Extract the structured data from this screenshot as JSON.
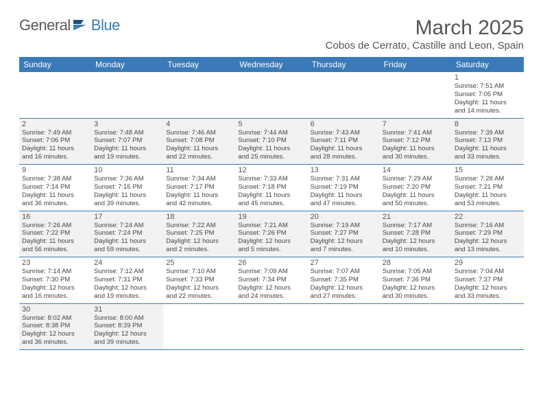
{
  "logo": {
    "text1": "General",
    "text2": "Blue"
  },
  "title": "March 2025",
  "location": "Cobos de Cerrato, Castille and Leon, Spain",
  "colors": {
    "accent": "#3a7ab8",
    "shaded": "#f2f2f2",
    "text": "#444"
  },
  "day_headers": [
    "Sunday",
    "Monday",
    "Tuesday",
    "Wednesday",
    "Thursday",
    "Friday",
    "Saturday"
  ],
  "weeks": [
    [
      {
        "empty": true
      },
      {
        "empty": true
      },
      {
        "empty": true
      },
      {
        "empty": true
      },
      {
        "empty": true
      },
      {
        "empty": true
      },
      {
        "n": "1",
        "sr": "Sunrise: 7:51 AM",
        "ss": "Sunset: 7:05 PM",
        "d1": "Daylight: 11 hours",
        "d2": "and 14 minutes."
      }
    ],
    [
      {
        "n": "2",
        "sr": "Sunrise: 7:49 AM",
        "ss": "Sunset: 7:06 PM",
        "d1": "Daylight: 11 hours",
        "d2": "and 16 minutes."
      },
      {
        "n": "3",
        "sr": "Sunrise: 7:48 AM",
        "ss": "Sunset: 7:07 PM",
        "d1": "Daylight: 11 hours",
        "d2": "and 19 minutes."
      },
      {
        "n": "4",
        "sr": "Sunrise: 7:46 AM",
        "ss": "Sunset: 7:08 PM",
        "d1": "Daylight: 11 hours",
        "d2": "and 22 minutes."
      },
      {
        "n": "5",
        "sr": "Sunrise: 7:44 AM",
        "ss": "Sunset: 7:10 PM",
        "d1": "Daylight: 11 hours",
        "d2": "and 25 minutes."
      },
      {
        "n": "6",
        "sr": "Sunrise: 7:43 AM",
        "ss": "Sunset: 7:11 PM",
        "d1": "Daylight: 11 hours",
        "d2": "and 28 minutes."
      },
      {
        "n": "7",
        "sr": "Sunrise: 7:41 AM",
        "ss": "Sunset: 7:12 PM",
        "d1": "Daylight: 11 hours",
        "d2": "and 30 minutes."
      },
      {
        "n": "8",
        "sr": "Sunrise: 7:39 AM",
        "ss": "Sunset: 7:13 PM",
        "d1": "Daylight: 11 hours",
        "d2": "and 33 minutes."
      }
    ],
    [
      {
        "n": "9",
        "sr": "Sunrise: 7:38 AM",
        "ss": "Sunset: 7:14 PM",
        "d1": "Daylight: 11 hours",
        "d2": "and 36 minutes."
      },
      {
        "n": "10",
        "sr": "Sunrise: 7:36 AM",
        "ss": "Sunset: 7:16 PM",
        "d1": "Daylight: 11 hours",
        "d2": "and 39 minutes."
      },
      {
        "n": "11",
        "sr": "Sunrise: 7:34 AM",
        "ss": "Sunset: 7:17 PM",
        "d1": "Daylight: 11 hours",
        "d2": "and 42 minutes."
      },
      {
        "n": "12",
        "sr": "Sunrise: 7:33 AM",
        "ss": "Sunset: 7:18 PM",
        "d1": "Daylight: 11 hours",
        "d2": "and 45 minutes."
      },
      {
        "n": "13",
        "sr": "Sunrise: 7:31 AM",
        "ss": "Sunset: 7:19 PM",
        "d1": "Daylight: 11 hours",
        "d2": "and 47 minutes."
      },
      {
        "n": "14",
        "sr": "Sunrise: 7:29 AM",
        "ss": "Sunset: 7:20 PM",
        "d1": "Daylight: 11 hours",
        "d2": "and 50 minutes."
      },
      {
        "n": "15",
        "sr": "Sunrise: 7:28 AM",
        "ss": "Sunset: 7:21 PM",
        "d1": "Daylight: 11 hours",
        "d2": "and 53 minutes."
      }
    ],
    [
      {
        "n": "16",
        "sr": "Sunrise: 7:26 AM",
        "ss": "Sunset: 7:22 PM",
        "d1": "Daylight: 11 hours",
        "d2": "and 56 minutes."
      },
      {
        "n": "17",
        "sr": "Sunrise: 7:24 AM",
        "ss": "Sunset: 7:24 PM",
        "d1": "Daylight: 11 hours",
        "d2": "and 59 minutes."
      },
      {
        "n": "18",
        "sr": "Sunrise: 7:22 AM",
        "ss": "Sunset: 7:25 PM",
        "d1": "Daylight: 12 hours",
        "d2": "and 2 minutes."
      },
      {
        "n": "19",
        "sr": "Sunrise: 7:21 AM",
        "ss": "Sunset: 7:26 PM",
        "d1": "Daylight: 12 hours",
        "d2": "and 5 minutes."
      },
      {
        "n": "20",
        "sr": "Sunrise: 7:19 AM",
        "ss": "Sunset: 7:27 PM",
        "d1": "Daylight: 12 hours",
        "d2": "and 7 minutes."
      },
      {
        "n": "21",
        "sr": "Sunrise: 7:17 AM",
        "ss": "Sunset: 7:28 PM",
        "d1": "Daylight: 12 hours",
        "d2": "and 10 minutes."
      },
      {
        "n": "22",
        "sr": "Sunrise: 7:16 AM",
        "ss": "Sunset: 7:29 PM",
        "d1": "Daylight: 12 hours",
        "d2": "and 13 minutes."
      }
    ],
    [
      {
        "n": "23",
        "sr": "Sunrise: 7:14 AM",
        "ss": "Sunset: 7:30 PM",
        "d1": "Daylight: 12 hours",
        "d2": "and 16 minutes."
      },
      {
        "n": "24",
        "sr": "Sunrise: 7:12 AM",
        "ss": "Sunset: 7:31 PM",
        "d1": "Daylight: 12 hours",
        "d2": "and 19 minutes."
      },
      {
        "n": "25",
        "sr": "Sunrise: 7:10 AM",
        "ss": "Sunset: 7:33 PM",
        "d1": "Daylight: 12 hours",
        "d2": "and 22 minutes."
      },
      {
        "n": "26",
        "sr": "Sunrise: 7:09 AM",
        "ss": "Sunset: 7:34 PM",
        "d1": "Daylight: 12 hours",
        "d2": "and 24 minutes."
      },
      {
        "n": "27",
        "sr": "Sunrise: 7:07 AM",
        "ss": "Sunset: 7:35 PM",
        "d1": "Daylight: 12 hours",
        "d2": "and 27 minutes."
      },
      {
        "n": "28",
        "sr": "Sunrise: 7:05 AM",
        "ss": "Sunset: 7:36 PM",
        "d1": "Daylight: 12 hours",
        "d2": "and 30 minutes."
      },
      {
        "n": "29",
        "sr": "Sunrise: 7:04 AM",
        "ss": "Sunset: 7:37 PM",
        "d1": "Daylight: 12 hours",
        "d2": "and 33 minutes."
      }
    ],
    [
      {
        "n": "30",
        "sr": "Sunrise: 8:02 AM",
        "ss": "Sunset: 8:38 PM",
        "d1": "Daylight: 12 hours",
        "d2": "and 36 minutes."
      },
      {
        "n": "31",
        "sr": "Sunrise: 8:00 AM",
        "ss": "Sunset: 8:39 PM",
        "d1": "Daylight: 12 hours",
        "d2": "and 39 minutes."
      },
      {
        "empty": true
      },
      {
        "empty": true
      },
      {
        "empty": true
      },
      {
        "empty": true
      },
      {
        "empty": true
      }
    ]
  ]
}
